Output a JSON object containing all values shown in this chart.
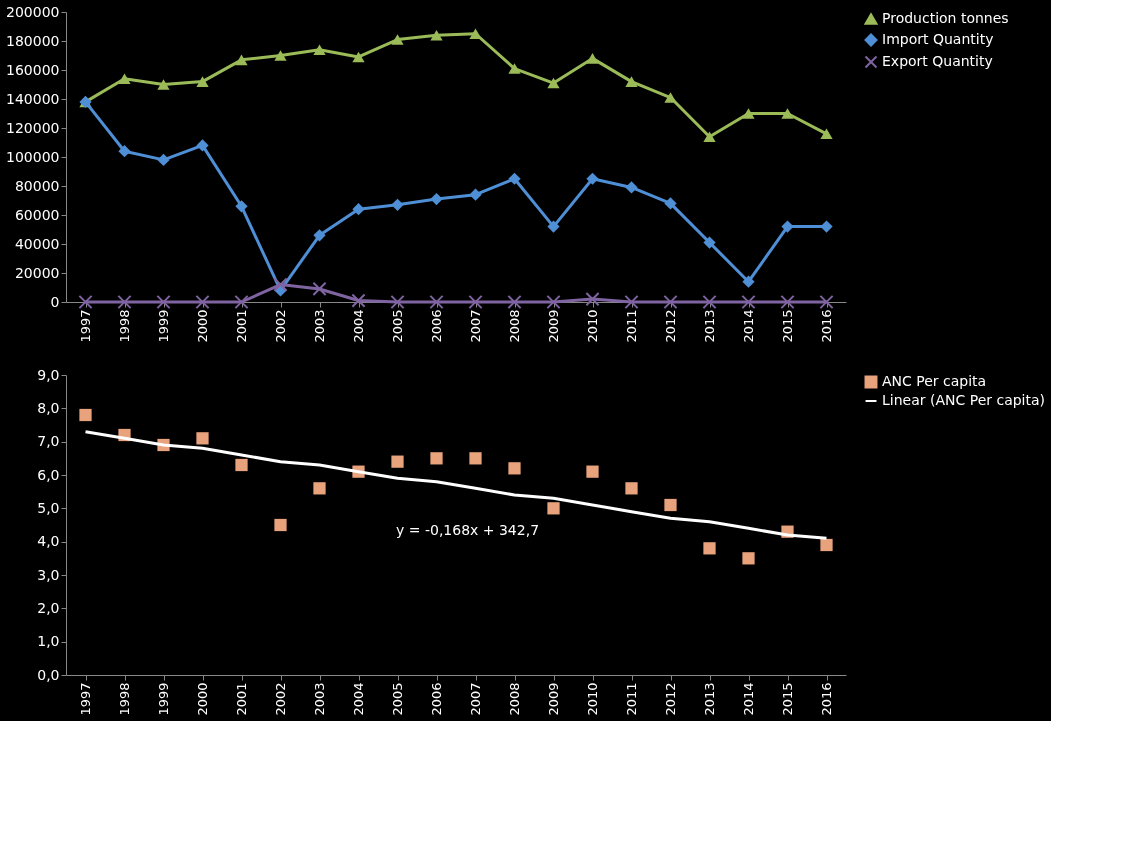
{
  "chart_data": [
    {
      "type": "line",
      "categories": [
        "1997",
        "1998",
        "1999",
        "2000",
        "2001",
        "2002",
        "2003",
        "2004",
        "2005",
        "2006",
        "2007",
        "2008",
        "2009",
        "2010",
        "2011",
        "2012",
        "2013",
        "2014",
        "2015",
        "2016"
      ],
      "series": [
        {
          "name": "Production tonnes",
          "color": "#9bbb59",
          "marker": "triangle",
          "values": [
            138000,
            154000,
            150000,
            152000,
            167000,
            170000,
            174000,
            169000,
            181000,
            184000,
            185000,
            161000,
            151000,
            168000,
            152000,
            141000,
            114000,
            130000,
            130000,
            116000
          ]
        },
        {
          "name": "Import Quantity",
          "color": "#4f8fd6",
          "marker": "diamond",
          "values": [
            138000,
            104000,
            98000,
            108000,
            66000,
            8000,
            46000,
            64000,
            67000,
            71000,
            74000,
            85000,
            52000,
            85000,
            79000,
            68000,
            41000,
            14000,
            52000,
            52000
          ]
        },
        {
          "name": "Export Quantity",
          "color": "#8064a2",
          "marker": "cross",
          "values": [
            0,
            0,
            0,
            0,
            0,
            12000,
            9000,
            1000,
            0,
            0,
            0,
            0,
            0,
            2000,
            0,
            0,
            0,
            0,
            0,
            0
          ]
        }
      ],
      "ylim": [
        0,
        200000
      ],
      "yticks": [
        0,
        20000,
        40000,
        60000,
        80000,
        100000,
        120000,
        140000,
        160000,
        180000,
        200000
      ],
      "legend": "right",
      "grid": false
    },
    {
      "type": "scatter",
      "categories": [
        "1997",
        "1998",
        "1999",
        "2000",
        "2001",
        "2002",
        "2003",
        "2004",
        "2005",
        "2006",
        "2007",
        "2008",
        "2009",
        "2010",
        "2011",
        "2012",
        "2013",
        "2014",
        "2015",
        "2016"
      ],
      "series": [
        {
          "name": "ANC Per capita",
          "color": "#e8a27c",
          "marker": "square",
          "values": [
            7.8,
            7.2,
            6.9,
            7.1,
            6.3,
            4.5,
            5.6,
            6.1,
            6.4,
            6.5,
            6.5,
            6.2,
            5.0,
            6.1,
            5.6,
            5.1,
            3.8,
            3.5,
            4.3,
            3.9
          ]
        },
        {
          "name": "Linear (ANC Per capita)",
          "type": "line",
          "color": "#ffffff",
          "marker": "none",
          "values": [
            7.3,
            7.1,
            6.9,
            6.8,
            6.6,
            6.4,
            6.3,
            6.1,
            5.9,
            5.8,
            5.6,
            5.4,
            5.3,
            5.1,
            4.9,
            4.7,
            4.6,
            4.4,
            4.2,
            4.1
          ]
        }
      ],
      "annotations": [
        "y = -0,168x + 342,7"
      ],
      "ylim": [
        0,
        9
      ],
      "yticks": [
        {
          "value": 0,
          "label": "0,0"
        },
        {
          "value": 1,
          "label": "1,0"
        },
        {
          "value": 2,
          "label": "2,0"
        },
        {
          "value": 3,
          "label": "3,0"
        },
        {
          "value": 4,
          "label": "4,0"
        },
        {
          "value": 5,
          "label": "5,0"
        },
        {
          "value": 6,
          "label": "6,0"
        },
        {
          "value": 7,
          "label": "7,0"
        },
        {
          "value": 8,
          "label": "8,0"
        },
        {
          "value": 9,
          "label": "9,0"
        }
      ],
      "legend": "right",
      "grid": false
    }
  ]
}
